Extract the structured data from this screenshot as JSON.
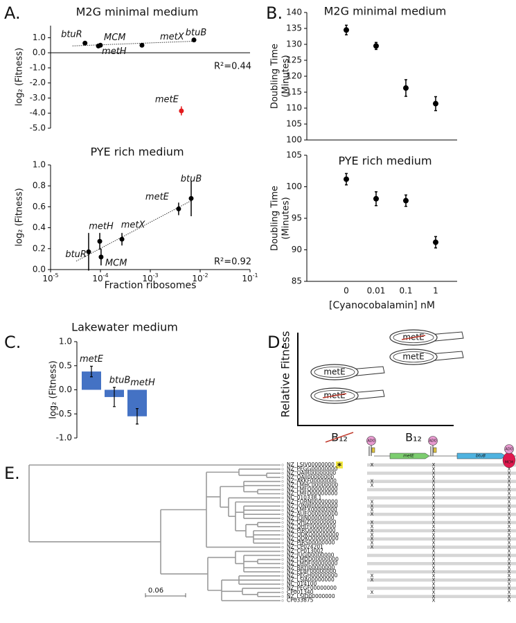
{
  "panel_labels": [
    "A.",
    "B.",
    "C.",
    "D.",
    "E."
  ],
  "chart_data": [
    {
      "type": "scatter",
      "title": "M2G minimal medium",
      "ylabel": "log₂ (Fitness)",
      "xscale": "log",
      "xlim": [
        1e-05,
        0.1
      ],
      "ylim": [
        -5,
        1.8
      ],
      "yticks": [
        {
          "value": 1,
          "label": "1.0"
        },
        {
          "value": 0,
          "label": "0.0"
        },
        {
          "value": -1,
          "label": "-1.0"
        },
        {
          "value": -2,
          "label": "-2.0"
        },
        {
          "value": -3,
          "label": "-3.0"
        },
        {
          "value": -4,
          "label": "-4.0"
        },
        {
          "value": -5,
          "label": "-5.0"
        }
      ],
      "labels": [
        "btuR",
        "metH",
        "MCM",
        "metX",
        "btuB",
        "metE"
      ],
      "x": [
        4.9e-05,
        9.1e-05,
        0.0001,
        0.00068,
        0.0075,
        0.0042
      ],
      "values": [
        0.64,
        0.45,
        0.5,
        0.5,
        0.85,
        -3.85
      ],
      "errors": [
        0.15,
        0.06,
        0.06,
        0.05,
        0.05,
        0.3
      ],
      "color": "#000000",
      "point_colors": [
        "#000000",
        "#000000",
        "#000000",
        "#000000",
        "#000000",
        "#e31a1c"
      ],
      "trendline": true,
      "annotation": "R²=0.44"
    },
    {
      "type": "scatter",
      "title": "PYE rich medium",
      "ylabel": "log₂ (Fitness)",
      "xlabel": "Fraction ribosomes",
      "xscale": "log",
      "xlim": [
        1e-05,
        0.1
      ],
      "xticks": [
        {
          "value": 1e-05,
          "label": "10",
          "exponent": "-5"
        },
        {
          "value": 0.0001,
          "label": "10",
          "exponent": "-4"
        },
        {
          "value": 0.001,
          "label": "10",
          "exponent": "-3"
        },
        {
          "value": 0.01,
          "label": "10",
          "exponent": "-2"
        },
        {
          "value": 0.1,
          "label": "10",
          "exponent": "-1"
        }
      ],
      "ylim": [
        0,
        1
      ],
      "yticks": [
        {
          "value": 0,
          "label": "0.0"
        },
        0.2,
        0.4,
        0.6,
        0.8,
        {
          "value": 1,
          "label": "1.0"
        }
      ],
      "labels": [
        "btuR",
        "metH",
        "MCM",
        "metX",
        "metE",
        "btuB"
      ],
      "x": [
        5.8e-05,
        9.7e-05,
        0.000103,
        0.00027,
        0.0037,
        0.0066
      ],
      "values": [
        0.17,
        0.27,
        0.12,
        0.29,
        0.58,
        0.68
      ],
      "errors": [
        0.18,
        0.08,
        0.08,
        0.06,
        0.06,
        0.17
      ],
      "color": "#000000",
      "point_colors": [
        "#000000",
        "#000000",
        "#000000",
        "#000000",
        "#000000",
        "#000000"
      ],
      "trendline": true,
      "annotation": "R²=0.92"
    },
    {
      "type": "errorbar",
      "title": "M2G minimal medium",
      "ylabel": [
        "Doubling Time",
        "(Minutes)"
      ],
      "categories": [
        null,
        null,
        null,
        null
      ],
      "values": [
        134.5,
        129.5,
        116.3,
        111.4
      ],
      "errors": [
        1.5,
        1.1,
        2.6,
        2.2
      ],
      "ylim": [
        100,
        140
      ],
      "yticks": [
        100,
        105,
        110,
        115,
        120,
        125,
        130,
        135,
        140
      ],
      "color": "#000000"
    },
    {
      "type": "errorbar",
      "title": "PYE rich medium",
      "ylabel": [
        "Doubling Time",
        "(Minutes)"
      ],
      "xlabel": "[Cyanocobalamin] nM",
      "categories": [
        "0",
        "0.01",
        "0.1",
        "1"
      ],
      "values": [
        101.2,
        98.1,
        97.8,
        91.2
      ],
      "errors": [
        0.9,
        1.1,
        0.9,
        0.9
      ],
      "ylim": [
        85,
        105
      ],
      "yticks": [
        85,
        90,
        95,
        100,
        105
      ],
      "color": "#000000"
    },
    {
      "type": "bar",
      "title": "Lakewater medium",
      "ylabel": "log₂ (Fitness)",
      "categories": [
        "metE",
        "btuB",
        "metH"
      ],
      "values": [
        0.38,
        -0.15,
        -0.55
      ],
      "errors": [
        0.11,
        0.2,
        0.16
      ],
      "ylim": [
        -1,
        1
      ],
      "yticks": [
        {
          "value": 1,
          "label": "1.0"
        },
        0.5,
        {
          "value": 0,
          "label": "0.0"
        },
        -0.5,
        {
          "value": -1,
          "label": "-1.0"
        }
      ],
      "color": "#4472c4"
    }
  ],
  "diagram": {
    "ylabel": "Relative Fitness",
    "conditions": [
      {
        "label": "B₁₂",
        "crossed": true
      },
      {
        "label": "B₁₂",
        "crossed": false
      }
    ],
    "cells": [
      {
        "label": "metE",
        "deleted": false
      },
      {
        "label": "metE",
        "deleted": true
      },
      {
        "label": "metE",
        "deleted": true
      },
      {
        "label": "metE",
        "deleted": false
      }
    ]
  },
  "tree": {
    "scale": "0.06",
    "genes": [
      "metE",
      "btuB",
      "MCM"
    ],
    "cofactor": "ADO",
    "leaves": [
      {
        "name": "NZ_LSIV00000000",
        "mark": "*",
        "cells": [
          "X",
          "X",
          "X"
        ]
      },
      {
        "name": "NZ_PEGG00000000",
        "cells": [
          null,
          "X",
          "X"
        ]
      },
      {
        "name": "NZ_QAIR00000000",
        "cells": [
          null,
          "X",
          "X"
        ]
      },
      {
        "name": "NZ_QAII00000000",
        "cells": [
          null,
          "X",
          "X"
        ]
      },
      {
        "name": "NZ_AKKF00000000",
        "cells": [
          "X",
          "X",
          "X"
        ]
      },
      {
        "name": "NZ_LMHC00000000",
        "cells": [
          "X",
          "X",
          "X"
        ]
      },
      {
        "name": "NZ_LMFQ00000000",
        "cells": [
          null,
          "X",
          "X"
        ]
      },
      {
        "name": "NZ_LMFD00000000",
        "cells": [
          null,
          "X",
          "X"
        ]
      },
      {
        "name": "NC_010338.1",
        "cells": [
          null,
          "X",
          "X"
        ]
      },
      {
        "name": "NZ_FORN00000000",
        "cells": [
          "X",
          "X",
          "X"
        ]
      },
      {
        "name": "NZ_JONW00000000",
        "cells": [
          "X",
          "X",
          "X"
        ]
      },
      {
        "name": "NZ_LMFX00000000",
        "cells": [
          "X",
          "X",
          "X"
        ]
      },
      {
        "name": "NZ_AUEO00000000",
        "cells": [
          "X",
          "X",
          "X"
        ]
      },
      {
        "name": "NZ_JQJN00000000",
        "cells": [
          null,
          "X",
          "X"
        ]
      },
      {
        "name": "NZ_QHJZ00000000",
        "cells": [
          "X",
          "X",
          "X"
        ]
      },
      {
        "name": "NZ_QHJY00000000",
        "cells": [
          "X",
          "X",
          "X"
        ]
      },
      {
        "name": "NZ_PJRQ00000000",
        "cells": [
          "X",
          "X",
          "X"
        ]
      },
      {
        "name": "NZ_QDKQ00000000",
        "cells": [
          "X",
          "X",
          "X"
        ]
      },
      {
        "name": "NZ_QDKO00000000",
        "cells": [
          "X",
          "X",
          "X"
        ]
      },
      {
        "name": "NZ_PJRS00000000",
        "cells": [
          "X",
          "X",
          "X"
        ]
      },
      {
        "name": "NZ_CP024201",
        "cells": [
          "X",
          "X",
          "X"
        ]
      },
      {
        "name": "NZ_CP013002",
        "cells": [
          null,
          "X",
          "X"
        ]
      },
      {
        "name": "NZ_JUGJ00000000",
        "cells": [
          null,
          "X",
          "X"
        ]
      },
      {
        "name": "NZ_LMDD00000000",
        "cells": [
          null,
          "X",
          "X"
        ]
      },
      {
        "name": "NZ_LMDF00000000",
        "cells": [
          null,
          "X",
          "X"
        ]
      },
      {
        "name": "NZ_RRYI00000000",
        "cells": [
          null,
          "X",
          "X"
        ]
      },
      {
        "name": "NZ_PEBF00000000",
        "cells": [
          null,
          "X",
          "X"
        ]
      },
      {
        "name": "NZ_PEGH00000000",
        "cells": [
          "X",
          "X",
          "X"
        ]
      },
      {
        "name": "NZ_LSJA00000000",
        "cells": [
          "X",
          "X",
          "X"
        ]
      },
      {
        "name": "NC_014100",
        "cells": [
          null,
          "X",
          "X"
        ]
      },
      {
        "name": "NZ_PEGF00000000",
        "cells": [
          null,
          "X",
          "X"
        ]
      },
      {
        "name": "CP001340",
        "cells": [
          "X",
          "X",
          "X"
        ]
      },
      {
        "name": "NZ_LSJD00000000",
        "cells": [
          null,
          "X",
          "X"
        ]
      },
      {
        "name": "CP033875",
        "cells": [
          null,
          "X",
          "X"
        ]
      }
    ]
  }
}
